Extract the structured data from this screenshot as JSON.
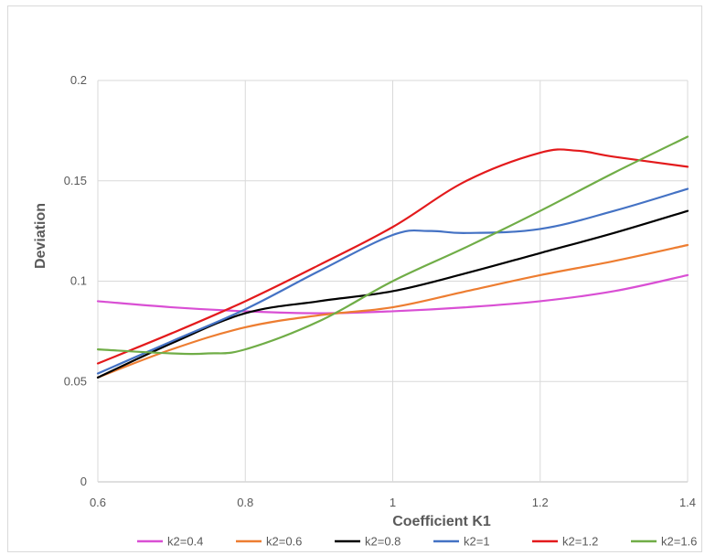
{
  "chart_data": {
    "type": "line",
    "title": "",
    "xlabel": "Coefficient K1",
    "ylabel": "Deviation",
    "xlim": [
      0.6,
      1.4
    ],
    "ylim": [
      0,
      0.2
    ],
    "x_ticks": [
      "0.6",
      "0.8",
      "1",
      "1.2",
      "1.4"
    ],
    "y_ticks": [
      "0",
      "0.05",
      "0.1",
      "0.15",
      "0.2"
    ],
    "grid": true,
    "legend_position": "bottom",
    "series": [
      {
        "name": "k2=0.4",
        "color": "#d94fd4",
        "x": [
          0.6,
          0.7,
          0.8,
          0.9,
          1.0,
          1.1,
          1.2,
          1.3,
          1.4
        ],
        "values": [
          0.09,
          0.087,
          0.085,
          0.084,
          0.085,
          0.087,
          0.09,
          0.095,
          0.103
        ]
      },
      {
        "name": "k2=0.6",
        "color": "#ed7d31",
        "x": [
          0.6,
          0.7,
          0.8,
          0.9,
          1.0,
          1.1,
          1.2,
          1.3,
          1.4
        ],
        "values": [
          0.052,
          0.066,
          0.077,
          0.083,
          0.087,
          0.095,
          0.103,
          0.11,
          0.118
        ]
      },
      {
        "name": "k2=0.8",
        "color": "#000000",
        "x": [
          0.6,
          0.7,
          0.8,
          0.9,
          1.0,
          1.1,
          1.2,
          1.3,
          1.4
        ],
        "values": [
          0.052,
          0.069,
          0.084,
          0.09,
          0.095,
          0.104,
          0.114,
          0.124,
          0.135
        ]
      },
      {
        "name": "k2=1",
        "color": "#4472c4",
        "x": [
          0.6,
          0.7,
          0.8,
          0.9,
          1.0,
          1.05,
          1.1,
          1.2,
          1.3,
          1.4
        ],
        "values": [
          0.054,
          0.07,
          0.086,
          0.105,
          0.123,
          0.125,
          0.124,
          0.126,
          0.135,
          0.146
        ]
      },
      {
        "name": "k2=1.2",
        "color": "#e31a1c",
        "x": [
          0.6,
          0.7,
          0.8,
          0.9,
          1.0,
          1.1,
          1.2,
          1.25,
          1.3,
          1.4
        ],
        "values": [
          0.059,
          0.074,
          0.09,
          0.108,
          0.127,
          0.15,
          0.164,
          0.165,
          0.162,
          0.157
        ]
      },
      {
        "name": "k2=1.6",
        "color": "#70ad47",
        "x": [
          0.6,
          0.7,
          0.75,
          0.8,
          0.9,
          1.0,
          1.1,
          1.2,
          1.3,
          1.4
        ],
        "values": [
          0.066,
          0.064,
          0.064,
          0.066,
          0.08,
          0.1,
          0.117,
          0.135,
          0.154,
          0.172
        ]
      }
    ]
  }
}
